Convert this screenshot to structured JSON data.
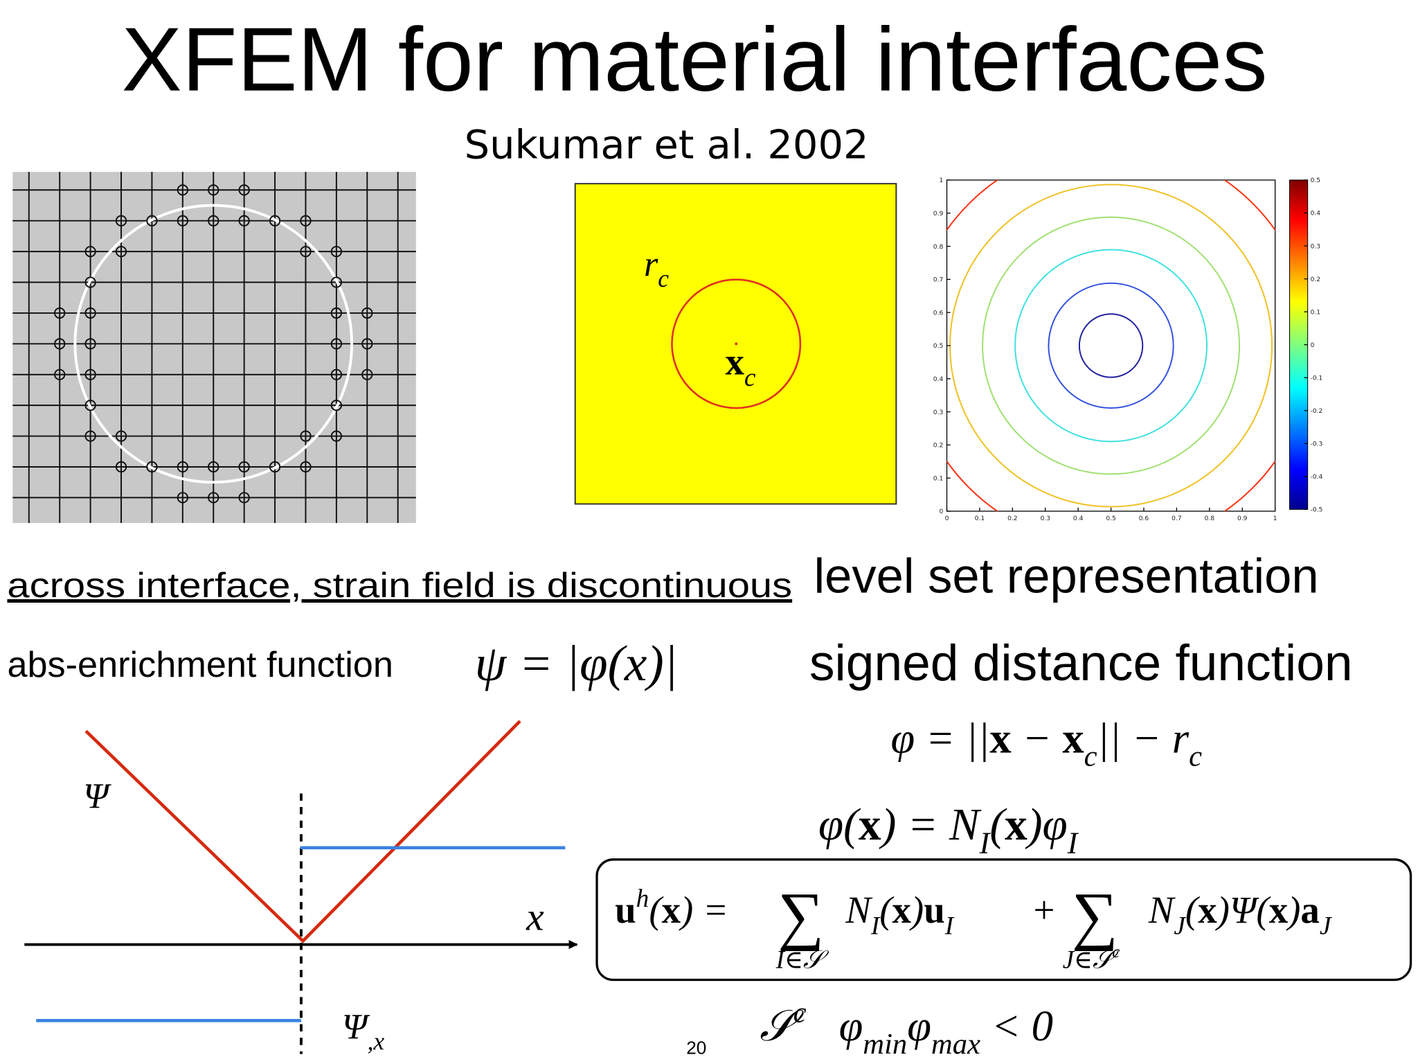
{
  "title": "XFEM for material interfaces",
  "subtitle": "Sukumar et al. 2002",
  "figures": {
    "radius_label": [
      {
        "t": "r"
      },
      {
        "t": "c",
        "pos": "sub"
      }
    ],
    "center_label": [
      {
        "t": "x",
        "bold": true
      },
      {
        "t": "c",
        "pos": "sub"
      }
    ],
    "contour_plot": {
      "xticks": [
        0,
        0.1,
        0.2,
        0.3,
        0.4,
        0.5,
        0.6,
        0.7,
        0.8,
        0.9,
        1
      ],
      "yticks": [
        0,
        0.1,
        0.2,
        0.3,
        0.4,
        0.5,
        0.6,
        0.7,
        0.8,
        0.9,
        1
      ],
      "colorbar_ticks": [
        0.5,
        0.4,
        0.3,
        0.2,
        0.1,
        0,
        -0.1,
        -0.2,
        -0.3,
        -0.4,
        -0.5
      ]
    }
  },
  "left": {
    "caption": "across interface, strain field is discontinuous",
    "enrichment_label": "abs-enrichment function",
    "enrichment_equation": [
      {
        "t": "ψ = |φ(x)|"
      }
    ]
  },
  "right": {
    "heading": "level set representation",
    "subheading": "signed distance function",
    "distance_equation": [
      {
        "t": "φ = ||"
      },
      {
        "t": "x",
        "bold": true
      },
      {
        "t": " − "
      },
      {
        "t": "x",
        "bold": true
      },
      {
        "t": "c",
        "pos": "sub"
      },
      {
        "t": "|| − r"
      },
      {
        "t": "c",
        "pos": "sub"
      }
    ],
    "interpolation_equation": [
      {
        "t": "φ("
      },
      {
        "t": "x",
        "bold": true
      },
      {
        "t": ") = N"
      },
      {
        "t": "I",
        "pos": "sub"
      },
      {
        "t": "("
      },
      {
        "t": "x",
        "bold": true
      },
      {
        "t": ")φ"
      },
      {
        "t": "I",
        "pos": "sub"
      }
    ],
    "approximation": {
      "lhs": [
        {
          "t": "u",
          "bold": true
        },
        {
          "t": "h",
          "pos": "sup"
        },
        {
          "t": "("
        },
        {
          "t": "x",
          "bold": true
        },
        {
          "t": ") ="
        }
      ],
      "sum1": "∑",
      "lim1": [
        {
          "t": "I∈𝒮"
        }
      ],
      "term1": [
        {
          "t": "N"
        },
        {
          "t": "I",
          "pos": "sub"
        },
        {
          "t": "("
        },
        {
          "t": "x",
          "bold": true
        },
        {
          "t": ")"
        },
        {
          "t": "u",
          "bold": true
        },
        {
          "t": "I",
          "pos": "sub"
        }
      ],
      "plus": "+",
      "sum2": "∑",
      "lim2": [
        {
          "t": "J∈𝒮"
        },
        {
          "t": "c",
          "pos": "sup"
        }
      ],
      "term2": [
        {
          "t": "N"
        },
        {
          "t": "J",
          "pos": "sub"
        },
        {
          "t": "("
        },
        {
          "t": "x",
          "bold": true
        },
        {
          "t": ")Ψ("
        },
        {
          "t": "x",
          "bold": true
        },
        {
          "t": ")"
        },
        {
          "t": "a",
          "bold": true
        },
        {
          "t": "J",
          "pos": "sub"
        }
      ]
    },
    "enriched_set": [
      {
        "t": "𝒮"
      },
      {
        "t": "c",
        "pos": "sup"
      },
      {
        "t": "   φ"
      },
      {
        "t": "min",
        "pos": "sub"
      },
      {
        "t": "φ"
      },
      {
        "t": "max",
        "pos": "sub"
      },
      {
        "t": " < 0"
      }
    ]
  },
  "diagram": {
    "psi_label": [
      {
        "t": "Ψ"
      }
    ],
    "x_label": [
      {
        "t": "x"
      }
    ],
    "derivative_label": [
      {
        "t": "Ψ"
      },
      {
        "t": ",x",
        "pos": "sub"
      }
    ]
  },
  "page_number": "20"
}
